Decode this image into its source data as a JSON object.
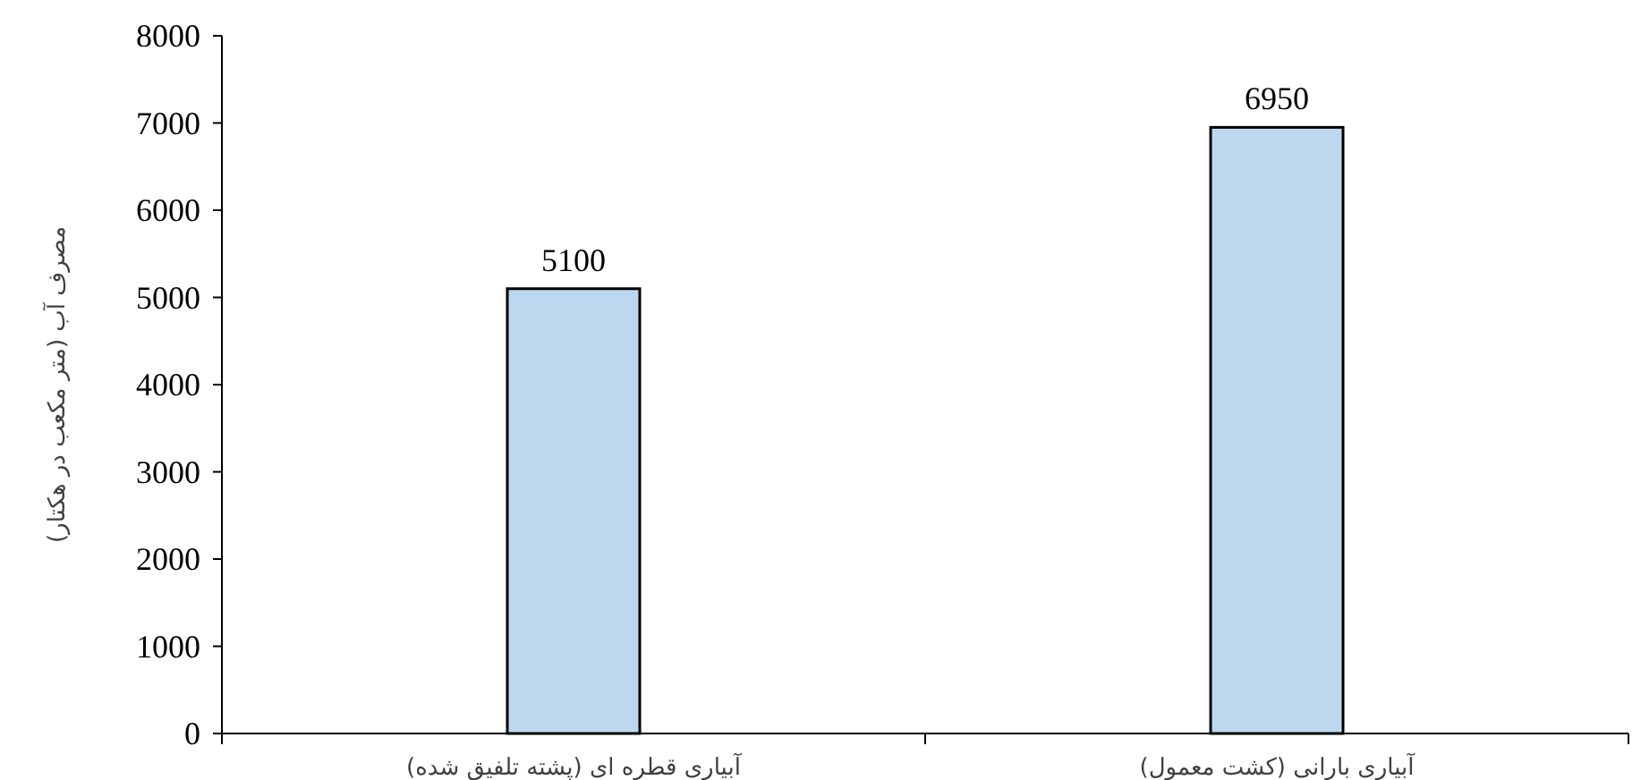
{
  "chart_data": {
    "type": "bar",
    "ylabel": "مصرف آب (متر مکعب در هکتار)",
    "categories": [
      "آبیاری قطره ای (پشته تلفیق شده)",
      "آبیاری بارانی (کشت معمول)"
    ],
    "values": [
      5100,
      6950
    ],
    "color": "#bdd7ee",
    "ylim": [
      0,
      8000
    ],
    "yticks": [
      0,
      1000,
      2000,
      3000,
      4000,
      5000,
      6000,
      7000,
      8000
    ],
    "data_labels": true,
    "grid": false
  }
}
